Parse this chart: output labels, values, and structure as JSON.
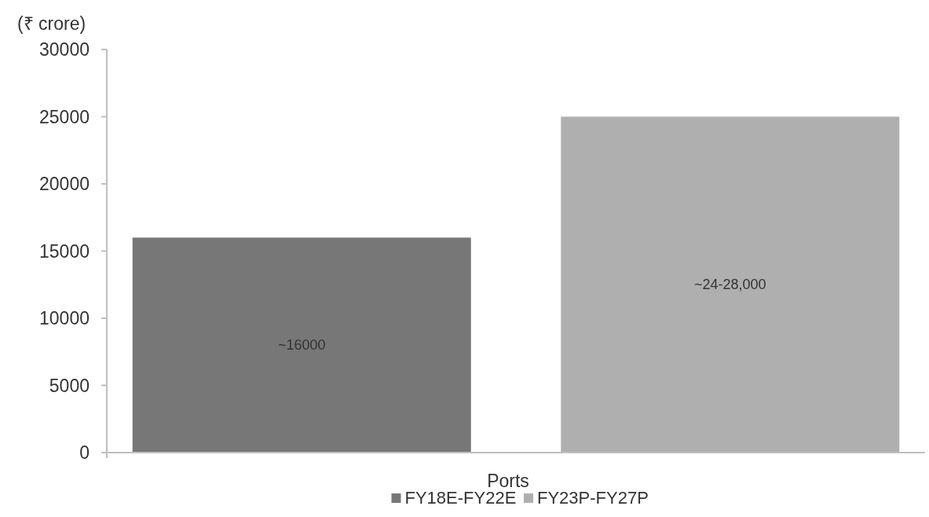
{
  "chart_data": {
    "type": "bar",
    "ylabel": "(₹ crore)",
    "categories": [
      "Ports"
    ],
    "series": [
      {
        "name": "FY18E-FY22E",
        "color": "#777777",
        "values": [
          16000
        ],
        "value_labels": [
          "~16000"
        ]
      },
      {
        "name": "FY23P-FY27P",
        "color": "#afafaf",
        "values": [
          25000
        ],
        "value_labels": [
          "~24-28,000"
        ]
      }
    ],
    "ylim": [
      0,
      30000
    ],
    "yticks": [
      0,
      5000,
      10000,
      15000,
      20000,
      25000,
      30000
    ],
    "grid": false,
    "legend": "bottom"
  }
}
